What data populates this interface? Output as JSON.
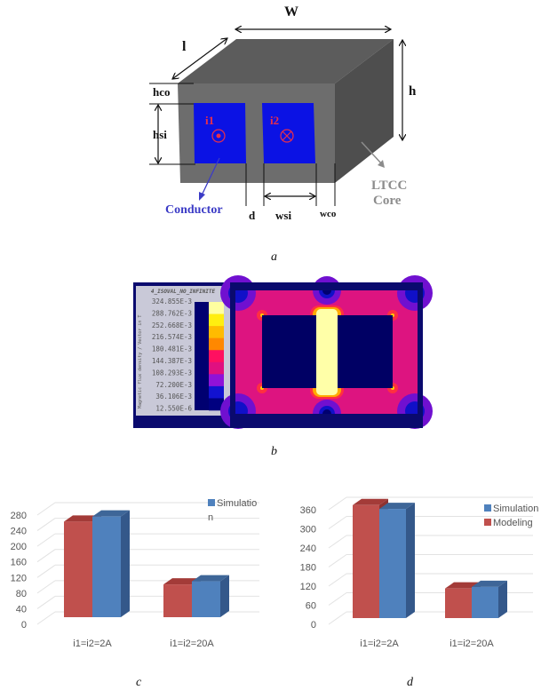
{
  "panel_a": {
    "labels": {
      "W": "W",
      "l": "l",
      "h": "h",
      "hco": "hco",
      "hsi": "hsi",
      "i1": "i1",
      "i2": "i2",
      "conductor": "Conductor",
      "d": "d",
      "wsi": "wsi",
      "wco": "wco",
      "ltcc": "LTCC",
      "core": "Core"
    },
    "caption": "a",
    "colors": {
      "core_front": "#6d6d6d",
      "core_top": "#5c5c5c",
      "core_side": "#4e4e4e",
      "conductor": "#0b12e4",
      "current_label": "#e8304a",
      "conductor_label": "#3b3bc6",
      "ltcc_label": "#8c8c8c"
    },
    "icons": {
      "i1": "current-out-of-page-icon",
      "i2": "current-into-page-icon"
    }
  },
  "panel_b": {
    "title": "4_ISOVAL_NO_INFINITE",
    "axis_label": "Magnetic flux density / Vector in T",
    "scale_values": [
      "324.855E-3",
      "288.762E-3",
      "252.668E-3",
      "216.574E-3",
      "180.481E-3",
      "144.387E-3",
      "108.293E-3",
      "72.200E-3",
      "36.106E-3",
      "12.550E-6"
    ],
    "scale_colors": [
      "#ffffa0",
      "#ffee10",
      "#ffbb00",
      "#ff8800",
      "#ff1060",
      "#e01080",
      "#9012d8",
      "#1212d0",
      "#000080"
    ],
    "caption": "b"
  },
  "chart_data": [
    {
      "type": "bar",
      "style": "3d-clustered-column",
      "categories": [
        "i1=i2=2A",
        "i1=i2=20A"
      ],
      "series": [
        {
          "name": "",
          "color": "#c0504d",
          "values": [
            245,
            84
          ]
        },
        {
          "name": "Simulation",
          "color": "#4f81bd",
          "values": [
            258,
            92
          ]
        }
      ],
      "yticks": [
        "0",
        "40",
        "80",
        "120",
        "160",
        "200",
        "240",
        "280"
      ],
      "ylim": [
        0,
        280
      ],
      "grid": true,
      "legend": "top-right",
      "legend_entries": [
        "Simulation"
      ],
      "caption": "c"
    },
    {
      "type": "bar",
      "style": "3d-clustered-column",
      "categories": [
        "i1=i2=2A",
        "i1=i2=20A"
      ],
      "series": [
        {
          "name": "Modeling",
          "color": "#c0504d",
          "values": [
            355,
            93
          ]
        },
        {
          "name": "Simulation",
          "color": "#4f81bd",
          "values": [
            343,
            98
          ]
        }
      ],
      "yticks": [
        "0",
        "60",
        "120",
        "180",
        "240",
        "300",
        "360"
      ],
      "ylim": [
        0,
        360
      ],
      "grid": true,
      "legend": "top-right",
      "legend_entries": [
        "Simulation",
        "Modeling"
      ],
      "caption": "d"
    }
  ]
}
